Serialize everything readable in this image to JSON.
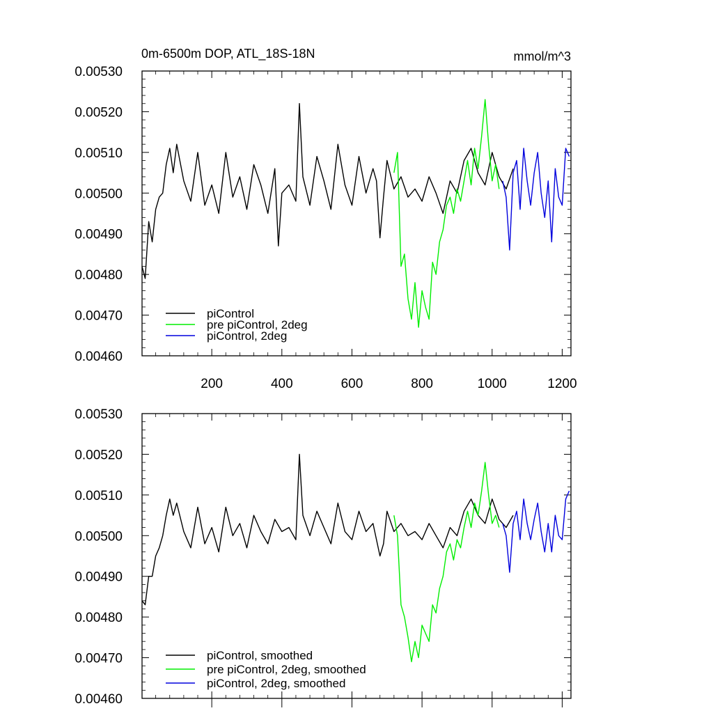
{
  "chart_data": [
    {
      "type": "line",
      "title": "0m-6500m DOP, ATL_18S-18N",
      "units": "mmol/m^3",
      "xlim": [
        1,
        1225
      ],
      "ylim": [
        0.0046,
        0.0053
      ],
      "x_ticks": [
        200,
        400,
        600,
        800,
        1000,
        1200
      ],
      "x_tick_labels": [
        "200",
        "400",
        "600",
        "800",
        "1000",
        "1200"
      ],
      "y_ticks": [
        0.0046,
        0.0047,
        0.0048,
        0.0049,
        0.005,
        0.0051,
        0.0052,
        0.0053
      ],
      "y_tick_labels": [
        "0.00460",
        "0.00470",
        "0.00480",
        "0.00490",
        "0.00500",
        "0.00510",
        "0.00520",
        "0.00530"
      ],
      "grid": false,
      "legend_position": "bottom-left",
      "series": [
        {
          "name": "piControl",
          "color": "#000000",
          "x": [
            1,
            10,
            20,
            30,
            40,
            50,
            60,
            70,
            80,
            90,
            100,
            120,
            140,
            160,
            180,
            200,
            220,
            240,
            260,
            280,
            300,
            320,
            340,
            360,
            380,
            390,
            400,
            420,
            440,
            450,
            460,
            480,
            500,
            520,
            540,
            560,
            580,
            600,
            620,
            640,
            660,
            670,
            680,
            690,
            700,
            720,
            740,
            760,
            780,
            800,
            820,
            840,
            860,
            880,
            900,
            920,
            940,
            960,
            980,
            1000,
            1020,
            1040,
            1060
          ],
          "y": [
            0.00482,
            0.00479,
            0.00493,
            0.00488,
            0.00496,
            0.00499,
            0.005,
            0.00507,
            0.00511,
            0.00505,
            0.00512,
            0.00503,
            0.00498,
            0.0051,
            0.00497,
            0.00502,
            0.00495,
            0.0051,
            0.00499,
            0.00504,
            0.00496,
            0.00507,
            0.00502,
            0.00495,
            0.00506,
            0.00487,
            0.005,
            0.00502,
            0.00498,
            0.00522,
            0.00504,
            0.00497,
            0.00509,
            0.00503,
            0.00496,
            0.00512,
            0.00502,
            0.00497,
            0.00509,
            0.005,
            0.00506,
            0.00503,
            0.00489,
            0.00499,
            0.00508,
            0.00501,
            0.00504,
            0.00499,
            0.00501,
            0.00498,
            0.00504,
            0.005,
            0.00495,
            0.00503,
            0.005,
            0.00508,
            0.00511,
            0.00505,
            0.00502,
            0.0051,
            0.00504,
            0.00501,
            0.00506
          ]
        },
        {
          "name": "pre piControl, 2deg",
          "color": "#00ee00",
          "x": [
            720,
            730,
            740,
            750,
            760,
            770,
            780,
            790,
            800,
            810,
            820,
            830,
            840,
            850,
            860,
            870,
            880,
            890,
            900,
            910,
            920,
            930,
            940,
            950,
            960,
            970,
            980,
            990,
            1000,
            1010,
            1020
          ],
          "y": [
            0.00505,
            0.0051,
            0.00482,
            0.00485,
            0.00474,
            0.00469,
            0.00478,
            0.00467,
            0.00476,
            0.00472,
            0.00469,
            0.00483,
            0.0048,
            0.00488,
            0.00491,
            0.00497,
            0.00499,
            0.00495,
            0.00501,
            0.00498,
            0.00503,
            0.00508,
            0.00502,
            0.00511,
            0.00506,
            0.00514,
            0.00523,
            0.00512,
            0.00503,
            0.00507,
            0.00501
          ]
        },
        {
          "name": "piControl, 2deg",
          "color": "#0000dd",
          "x": [
            1030,
            1040,
            1050,
            1060,
            1070,
            1080,
            1090,
            1100,
            1110,
            1120,
            1130,
            1140,
            1150,
            1160,
            1170,
            1180,
            1190,
            1200,
            1210,
            1220
          ],
          "y": [
            0.00503,
            0.00499,
            0.00486,
            0.00505,
            0.00508,
            0.00496,
            0.00511,
            0.00503,
            0.00497,
            0.00505,
            0.0051,
            0.005,
            0.00494,
            0.00503,
            0.00488,
            0.00506,
            0.00499,
            0.00497,
            0.00511,
            0.00509
          ]
        }
      ]
    },
    {
      "type": "line",
      "xlim": [
        1,
        1225
      ],
      "ylim": [
        0.0046,
        0.0053
      ],
      "y_ticks": [
        0.0046,
        0.0047,
        0.0048,
        0.0049,
        0.005,
        0.0051,
        0.0052,
        0.0053
      ],
      "y_tick_labels": [
        "0.00460",
        "0.00470",
        "0.00480",
        "0.00490",
        "0.00500",
        "0.00510",
        "0.00520",
        "0.00530"
      ],
      "grid": false,
      "legend_position": "bottom-left",
      "series": [
        {
          "name": "piControl, smoothed",
          "color": "#000000",
          "x": [
            1,
            10,
            20,
            30,
            40,
            50,
            60,
            70,
            80,
            90,
            100,
            120,
            140,
            160,
            180,
            200,
            220,
            240,
            260,
            280,
            300,
            320,
            340,
            360,
            380,
            400,
            420,
            440,
            450,
            460,
            480,
            500,
            520,
            540,
            560,
            580,
            600,
            620,
            640,
            660,
            680,
            690,
            700,
            720,
            740,
            760,
            780,
            800,
            820,
            840,
            860,
            880,
            900,
            920,
            940,
            960,
            980,
            1000,
            1020,
            1040,
            1060
          ],
          "y": [
            0.00484,
            0.00483,
            0.0049,
            0.0049,
            0.00495,
            0.00497,
            0.005,
            0.00505,
            0.00509,
            0.00505,
            0.00508,
            0.00501,
            0.00497,
            0.00507,
            0.00498,
            0.00502,
            0.00496,
            0.00507,
            0.005,
            0.00503,
            0.00497,
            0.00505,
            0.00501,
            0.00498,
            0.00504,
            0.00501,
            0.00502,
            0.00499,
            0.0052,
            0.00505,
            0.005,
            0.00506,
            0.00502,
            0.00498,
            0.00508,
            0.00501,
            0.00499,
            0.00506,
            0.00501,
            0.00503,
            0.00495,
            0.00498,
            0.00506,
            0.00501,
            0.00503,
            0.005,
            0.00501,
            0.00499,
            0.00503,
            0.005,
            0.00497,
            0.00502,
            0.005,
            0.00506,
            0.00509,
            0.00505,
            0.00503,
            0.00509,
            0.00504,
            0.00502,
            0.00505
          ]
        },
        {
          "name": "pre piControl, 2deg, smoothed",
          "color": "#00ee00",
          "x": [
            720,
            730,
            740,
            750,
            760,
            770,
            780,
            790,
            800,
            810,
            820,
            830,
            840,
            850,
            860,
            870,
            880,
            890,
            900,
            910,
            920,
            930,
            940,
            950,
            960,
            970,
            980,
            990,
            1000,
            1010,
            1020
          ],
          "y": [
            0.00505,
            0.005,
            0.00483,
            0.0048,
            0.00475,
            0.00469,
            0.00474,
            0.0047,
            0.00478,
            0.00476,
            0.00474,
            0.00483,
            0.00481,
            0.00487,
            0.0049,
            0.00496,
            0.00498,
            0.00494,
            0.00499,
            0.00497,
            0.00502,
            0.00506,
            0.00502,
            0.00508,
            0.00505,
            0.00511,
            0.00518,
            0.0051,
            0.00503,
            0.00505,
            0.00502
          ]
        },
        {
          "name": "piControl, 2deg, smoothed",
          "color": "#0000dd",
          "x": [
            1030,
            1040,
            1050,
            1060,
            1070,
            1080,
            1090,
            1100,
            1110,
            1120,
            1130,
            1140,
            1150,
            1160,
            1170,
            1180,
            1190,
            1200,
            1210,
            1220
          ],
          "y": [
            0.00503,
            0.005,
            0.00491,
            0.00503,
            0.00506,
            0.00499,
            0.00509,
            0.00503,
            0.00499,
            0.00504,
            0.00508,
            0.00501,
            0.00496,
            0.00503,
            0.00496,
            0.00505,
            0.005,
            0.00499,
            0.00509,
            0.00511
          ]
        }
      ]
    }
  ]
}
